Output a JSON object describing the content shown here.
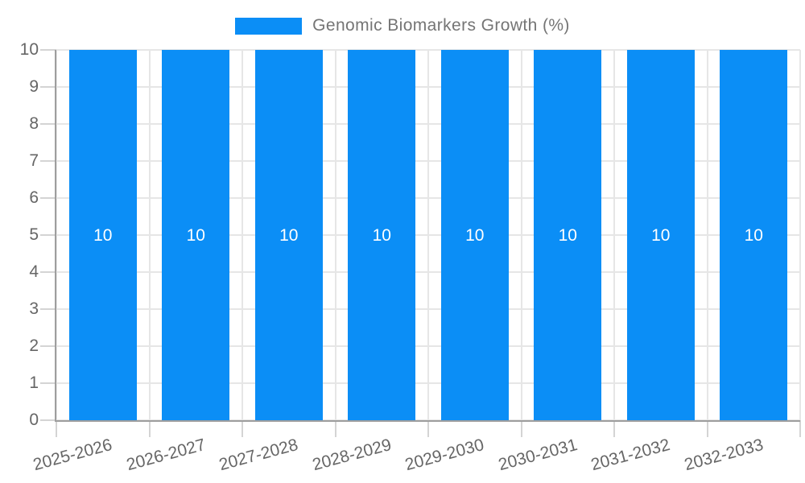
{
  "chart_data": {
    "type": "bar",
    "title": "Genomic Biomarkers Growth (%)",
    "categories": [
      "2025-2026",
      "2026-2027",
      "2027-2028",
      "2028-2029",
      "2029-2030",
      "2030-2031",
      "2031-2032",
      "2032-2033"
    ],
    "values": [
      10,
      10,
      10,
      10,
      10,
      10,
      10,
      10
    ],
    "bar_value_labels": [
      "10",
      "10",
      "10",
      "10",
      "10",
      "10",
      "10",
      "10"
    ],
    "xlabel": "",
    "ylabel": "",
    "ylim": [
      0,
      10
    ],
    "ytick_step": 1,
    "ytick_labels": [
      "0",
      "1",
      "2",
      "3",
      "4",
      "5",
      "6",
      "7",
      "8",
      "9",
      "10"
    ],
    "grid": true,
    "legend_position": "top",
    "bar_color": "#0b8ef6",
    "bar_label_color": "#ffffff",
    "grid_color": "#e6e6e6",
    "tick_color": "#d4d4d4",
    "axis_color": "#9e9e9e",
    "label_color": "#666666",
    "legend_text_color": "#757575",
    "background_color": "#ffffff"
  }
}
